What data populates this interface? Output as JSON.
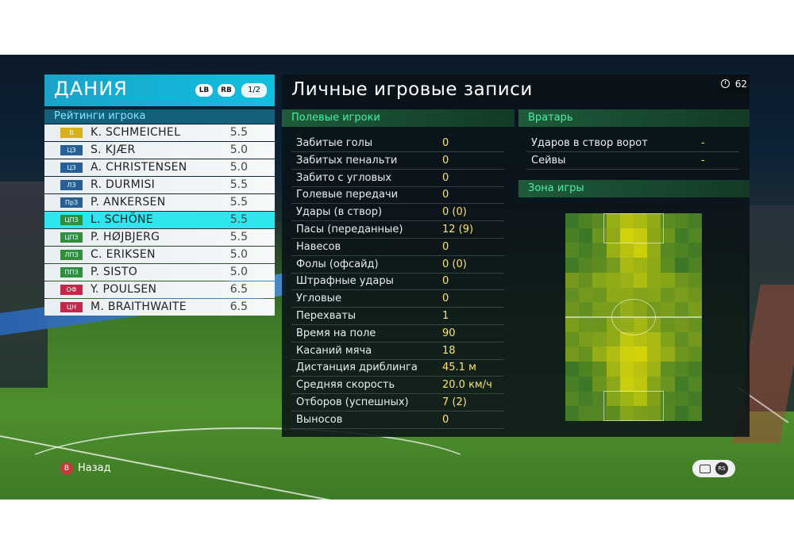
{
  "team": {
    "name": "ДАНИЯ",
    "lb_label": "LB",
    "rb_label": "RB",
    "page": "1/2",
    "ratings_title": "Рейтинги игрока",
    "players": [
      {
        "pos": "В",
        "name": "K. SCHMEICHEL",
        "rating": "5.5",
        "pos_color": "#d8b21c"
      },
      {
        "pos": "ЦЗ",
        "name": "S. KJÆR",
        "rating": "5.0",
        "pos_color": "#2a5f95"
      },
      {
        "pos": "ЦЗ",
        "name": "A. CHRISTENSEN",
        "rating": "5.0",
        "pos_color": "#2a5f95"
      },
      {
        "pos": "ЛЗ",
        "name": "R. DURMISI",
        "rating": "5.5",
        "pos_color": "#2a5f95"
      },
      {
        "pos": "ПрЗ",
        "name": "P. ANKERSEN",
        "rating": "5.5",
        "pos_color": "#2a5f95"
      },
      {
        "pos": "ЦПЗ",
        "name": "L. SCHÖNE",
        "rating": "5.5",
        "pos_color": "#2f8f3a"
      },
      {
        "pos": "ЦПЗ",
        "name": "P. HØJBJERG",
        "rating": "5.5",
        "pos_color": "#2f8f3a"
      },
      {
        "pos": "ЛПЗ",
        "name": "C. ERIKSEN",
        "rating": "5.0",
        "pos_color": "#2f8f3a"
      },
      {
        "pos": "ППЗ",
        "name": "P. SISTO",
        "rating": "5.0",
        "pos_color": "#2f8f3a"
      },
      {
        "pos": "ОФ",
        "name": "Y. POULSEN",
        "rating": "6.5",
        "pos_color": "#c2284a"
      },
      {
        "pos": "ЦН",
        "name": "M. BRAITHWAITE",
        "rating": "6.5",
        "pos_color": "#c2284a"
      }
    ],
    "active_index": 5
  },
  "records": {
    "title": "Личные игровые записи",
    "timer": "62",
    "field_title": "Полевые игроки",
    "gk_title": "Вратарь",
    "zone_title": "Зона игры",
    "field_stats": [
      {
        "label": "Забитые голы",
        "value": "0"
      },
      {
        "label": "Забитых пенальти",
        "value": "0"
      },
      {
        "label": "Забито с угловых",
        "value": "0"
      },
      {
        "label": "Голевые передачи",
        "value": "0"
      },
      {
        "label": "Удары (в створ)",
        "value": "0 (0)"
      },
      {
        "label": "Пасы (переданные)",
        "value": "12 (9)"
      },
      {
        "label": "Навесов",
        "value": "0"
      },
      {
        "label": "Фолы (офсайд)",
        "value": "0 (0)"
      },
      {
        "label": "Штрафные удары",
        "value": "0"
      },
      {
        "label": "Угловые",
        "value": "0"
      },
      {
        "label": "Перехваты",
        "value": "1"
      },
      {
        "label": "Время на поле",
        "value": "90"
      },
      {
        "label": "Касаний мяча",
        "value": "18"
      },
      {
        "label": "Дистанция дриблинга",
        "value": "45.1 м"
      },
      {
        "label": "Средняя скорость",
        "value": "20.0 км/ч"
      },
      {
        "label": "Отборов (успешных)",
        "value": "7 (2)"
      },
      {
        "label": "Выносов",
        "value": "0"
      }
    ],
    "gk_stats": [
      {
        "label": "Ударов в створ ворот",
        "value": "-"
      },
      {
        "label": "Сейвы",
        "value": "-"
      }
    ]
  },
  "footer": {
    "back_button": "B",
    "back_label": "Назад",
    "rs_label": "RS"
  },
  "colors": {
    "accent": "#12bfe0",
    "active_row": "#2de6ee",
    "section_text": "#49f0a6",
    "value_text": "#ffe36a"
  }
}
